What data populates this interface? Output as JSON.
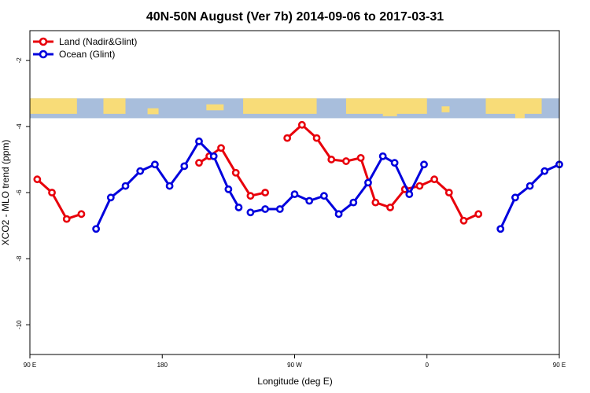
{
  "chart_data": {
    "type": "line",
    "title": "40N-50N August (Ver 7b)   2014-09-06 to 2017-03-31",
    "xlabel": "Longitude (deg E)",
    "ylabel": "XCO2 - MLO trend (ppm)",
    "xlim": [
      -180,
      180
    ],
    "ylim": [
      -10.9,
      -1.1
    ],
    "x_ticks": [
      {
        "value": -180,
        "label": "90 E"
      },
      {
        "value": -90,
        "label": "180"
      },
      {
        "value": 0,
        "label": "90 W"
      },
      {
        "value": 90,
        "label": "0"
      },
      {
        "value": 180,
        "label": "90 E"
      },
      {
        "value": 270,
        "label": "180"
      }
    ],
    "y_ticks": [
      {
        "value": -2,
        "label": "-2"
      },
      {
        "value": -4,
        "label": "-4"
      },
      {
        "value": -6,
        "label": "-6"
      },
      {
        "value": -8,
        "label": "-8"
      },
      {
        "value": -10,
        "label": "-10"
      }
    ],
    "legend_position": "top-left",
    "map_band": {
      "ymin": -3.75,
      "ymax": -3.15,
      "ocean_color": "#a8bedc",
      "land_color": "#f8dc78"
    },
    "series": [
      {
        "name": "Land (Nadir&Glint)",
        "color": "#e8000b",
        "segments": [
          [
            [
              -175,
              -5.6
            ],
            [
              -165,
              -6.0
            ],
            [
              -155,
              -6.8
            ],
            [
              -145,
              -6.65
            ]
          ],
          [
            [
              -65,
              -5.1
            ],
            [
              -58,
              -4.9
            ],
            [
              -50,
              -4.65
            ],
            [
              -40,
              -5.4
            ],
            [
              -30,
              -6.1
            ],
            [
              -20,
              -6.0
            ]
          ],
          [
            [
              -5,
              -4.35
            ],
            [
              5,
              -3.95
            ],
            [
              15,
              -4.35
            ],
            [
              25,
              -5.0
            ],
            [
              35,
              -5.05
            ],
            [
              45,
              -4.95
            ],
            [
              55,
              -6.3
            ],
            [
              65,
              -6.45
            ],
            [
              75,
              -5.9
            ],
            [
              85,
              -5.8
            ],
            [
              95,
              -5.6
            ],
            [
              105,
              -6.0
            ],
            [
              115,
              -6.85
            ],
            [
              125,
              -6.65
            ]
          ]
        ]
      },
      {
        "name": "Ocean (Glint)",
        "color": "#0000dd",
        "segments": [
          [
            [
              -135,
              -7.1
            ],
            [
              -125,
              -6.15
            ],
            [
              -115,
              -5.8
            ],
            [
              -105,
              -5.35
            ],
            [
              -95,
              -5.15
            ],
            [
              -85,
              -5.8
            ],
            [
              -75,
              -5.2
            ],
            [
              -65,
              -4.45
            ],
            [
              -55,
              -4.9
            ],
            [
              -45,
              -5.9
            ],
            [
              -38,
              -6.45
            ]
          ],
          [
            [
              -30,
              -6.6
            ],
            [
              -20,
              -6.5
            ],
            [
              -10,
              -6.5
            ],
            [
              0,
              -6.05
            ],
            [
              10,
              -6.25
            ],
            [
              20,
              -6.1
            ],
            [
              30,
              -6.65
            ],
            [
              40,
              -6.3
            ],
            [
              50,
              -5.7
            ],
            [
              60,
              -4.9
            ],
            [
              68,
              -5.1
            ],
            [
              78,
              -6.05
            ],
            [
              88,
              -5.15
            ]
          ],
          [
            [
              140,
              -7.1
            ],
            [
              150,
              -6.15
            ],
            [
              160,
              -5.8
            ],
            [
              170,
              -5.35
            ],
            [
              180,
              -5.15
            ]
          ]
        ]
      }
    ]
  }
}
